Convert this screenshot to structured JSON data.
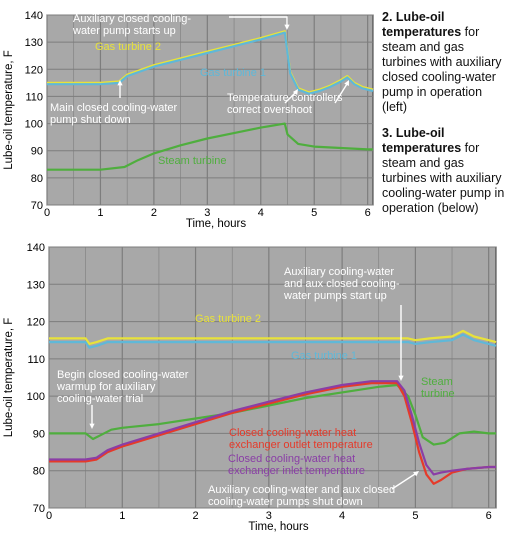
{
  "captions": [
    {
      "number": "2.",
      "bold": "Lube-oil temperatures",
      "rest": " for steam and gas turbines with auxiliary closed cooling-water pump in operation (left)"
    },
    {
      "number": "3.",
      "bold": "Lube-oil temperatures",
      "rest": " for steam and gas turbines with auxiliary cooling-water pump in operation (below)"
    }
  ],
  "colors": {
    "plot_bg": "#a8a8a8",
    "grid": "#7d7d7d",
    "gas2": "#e8e23a",
    "gas1": "#5fb8d8",
    "steam": "#4fae3e",
    "outlet": "#e53a2a",
    "inlet": "#8a3ea6",
    "annotation_white": "#ffffff"
  },
  "chart_data": [
    {
      "type": "line",
      "xlabel": "Time, hours",
      "ylabel": "Lube-oil temperature, F",
      "xlim": [
        0,
        6.1
      ],
      "ylim": [
        70,
        140
      ],
      "xticks": [
        "0",
        "1",
        "2",
        "3",
        "4",
        "5",
        "6"
      ],
      "yticks": [
        "70",
        "80",
        "90",
        "100",
        "110",
        "120",
        "130",
        "140"
      ],
      "grid": true,
      "series": [
        {
          "name": "Gas turbine 2",
          "color": "gas2",
          "x": [
            0,
            1.0,
            1.35,
            1.5,
            2.0,
            2.5,
            3.0,
            3.5,
            4.0,
            4.45,
            4.55,
            4.7,
            4.9,
            5.1,
            5.3,
            5.5,
            5.62,
            5.75,
            5.9,
            6.1
          ],
          "y": [
            115,
            115,
            115.5,
            118,
            121.5,
            124,
            126.5,
            129,
            131.5,
            134,
            119,
            113,
            111.5,
            112.5,
            114,
            116,
            117.5,
            115,
            113.5,
            112.5
          ]
        },
        {
          "name": "Gas turbine 1",
          "color": "gas1",
          "x": [
            0,
            1.0,
            1.35,
            1.5,
            2.0,
            2.5,
            3.0,
            3.5,
            4.0,
            4.45,
            4.55,
            4.7,
            4.9,
            5.1,
            5.3,
            5.5,
            5.62,
            5.75,
            5.9,
            6.1
          ],
          "y": [
            114.5,
            114.5,
            115,
            117.5,
            121,
            123.5,
            126,
            128.5,
            131,
            133.5,
            118.5,
            112.5,
            111,
            112,
            113.5,
            115.5,
            117,
            114.5,
            113,
            112
          ]
        },
        {
          "name": "Steam turbine",
          "color": "steam",
          "x": [
            0,
            1.0,
            1.45,
            1.7,
            2.0,
            2.5,
            3.0,
            3.5,
            4.0,
            4.45,
            4.5,
            4.7,
            5.0,
            5.5,
            6.0,
            6.1
          ],
          "y": [
            83,
            83,
            84,
            86.5,
            89,
            92,
            94.5,
            96.5,
            98.5,
            100,
            96,
            92.5,
            91.5,
            91,
            90.5,
            90.5
          ]
        }
      ],
      "annotations": [
        "Auxiliary closed cooling-water pump starts up",
        "Main closed cooling-water pump shut down",
        "Temperature controllers correct overshoot"
      ]
    },
    {
      "type": "line",
      "xlabel": "Time, hours",
      "ylabel": "Lube-oil temperature, F",
      "xlim": [
        0,
        6.1
      ],
      "ylim": [
        70,
        140
      ],
      "xticks": [
        "0",
        "1",
        "2",
        "3",
        "4",
        "5",
        "6"
      ],
      "yticks": [
        "70",
        "80",
        "90",
        "100",
        "110",
        "120",
        "130",
        "140"
      ],
      "grid": true,
      "series": [
        {
          "name": "Gas turbine 2",
          "color": "gas2",
          "x": [
            0,
            0.5,
            0.55,
            0.65,
            0.8,
            1.0,
            2.0,
            3.0,
            4.0,
            4.7,
            4.9,
            5.0,
            5.2,
            5.5,
            5.65,
            5.8,
            6.0,
            6.1
          ],
          "y": [
            115.5,
            115.5,
            114,
            114.5,
            115.5,
            115.5,
            115.5,
            115.5,
            115.5,
            115.5,
            115.5,
            115,
            115.5,
            116,
            117.5,
            116,
            115,
            114.5
          ]
        },
        {
          "name": "Gas turbine 1",
          "color": "gas1",
          "x": [
            0,
            0.5,
            0.55,
            0.65,
            0.8,
            1.0,
            2.0,
            3.0,
            4.0,
            4.7,
            4.9,
            5.0,
            5.2,
            5.5,
            5.65,
            5.8,
            6.0,
            6.1
          ],
          "y": [
            114.5,
            114.5,
            113,
            113.5,
            114.5,
            114.5,
            114.5,
            114.5,
            114.5,
            114.5,
            114.5,
            114,
            114.5,
            115,
            116.5,
            115,
            114,
            113.5
          ]
        },
        {
          "name": "Steam turbine",
          "color": "steam",
          "x": [
            0,
            0.5,
            0.6,
            0.7,
            0.85,
            1.0,
            1.5,
            2.0,
            2.5,
            3.0,
            3.5,
            4.0,
            4.5,
            4.75,
            4.9,
            5.0,
            5.1,
            5.25,
            5.4,
            5.6,
            5.8,
            6.0,
            6.1
          ],
          "y": [
            90,
            90,
            88.5,
            89.5,
            91,
            91.5,
            92.5,
            94,
            95.5,
            97.5,
            99.5,
            101,
            102.5,
            103,
            100,
            95,
            89,
            87,
            87.5,
            90,
            90.5,
            90,
            90
          ]
        },
        {
          "name": "Closed cooling-water heat exchanger outlet temperature",
          "color": "outlet",
          "x": [
            0,
            0.5,
            0.65,
            0.8,
            1.0,
            1.5,
            2.0,
            2.5,
            3.0,
            3.5,
            4.0,
            4.4,
            4.75,
            4.85,
            4.95,
            5.05,
            5.15,
            5.25,
            5.35,
            5.5,
            5.7,
            6.0,
            6.1
          ],
          "y": [
            82.5,
            82.5,
            83,
            85,
            86.5,
            89.5,
            92.5,
            95.5,
            98,
            100.5,
            102.5,
            103.5,
            103.5,
            100,
            93,
            85,
            79,
            76.5,
            77.5,
            79.5,
            80.5,
            81,
            81
          ]
        },
        {
          "name": "Closed cooling-water heat exchanger inlet temperature",
          "color": "inlet",
          "x": [
            0,
            0.5,
            0.65,
            0.8,
            1.0,
            1.5,
            2.0,
            2.5,
            3.0,
            3.5,
            4.0,
            4.4,
            4.75,
            4.85,
            4.95,
            5.05,
            5.15,
            5.25,
            5.35,
            5.5,
            5.7,
            6.0,
            6.1
          ],
          "y": [
            83,
            83,
            83.5,
            85.5,
            87,
            90,
            93,
            96,
            98.5,
            101,
            103,
            104,
            104,
            101.5,
            95,
            87.5,
            81.5,
            79,
            79.5,
            80,
            80.5,
            81,
            81
          ]
        }
      ],
      "annotations": [
        "Auxiliary cooling-water and aux closed cooling-water pumps start up",
        "Begin closed cooling-water warmup for auxiliary cooling-water trial",
        "Auxiliary cooling-water and aux closed cooling-water pumps shut down"
      ]
    }
  ]
}
